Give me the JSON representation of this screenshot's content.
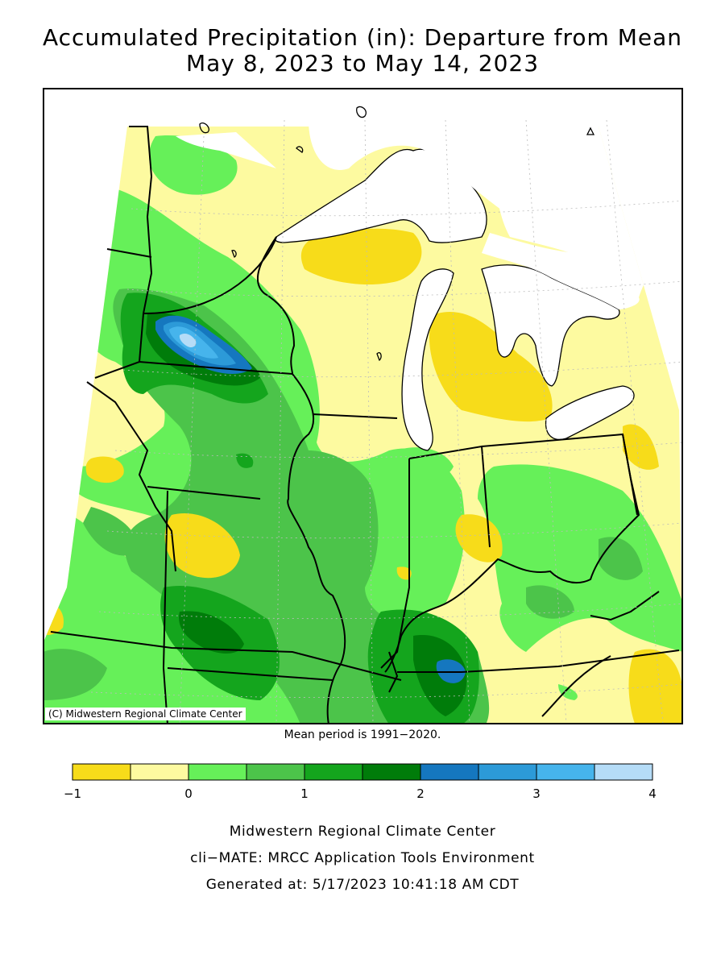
{
  "title": {
    "line1": "Accumulated Precipitation (in): Departure from Mean",
    "line2": "May 8, 2023 to May 14, 2023"
  },
  "map": {
    "credit": "(C) Midwestern Regional Climate Center",
    "mean_period_note": "Mean period is 1991−2020."
  },
  "legend": {
    "bins": [
      {
        "from": -1.0,
        "to": -0.5,
        "color": "#f7dc1a"
      },
      {
        "from": -0.5,
        "to": 0.0,
        "color": "#fdfaa0"
      },
      {
        "from": 0.0,
        "to": 0.5,
        "color": "#66f059"
      },
      {
        "from": 0.5,
        "to": 1.0,
        "color": "#4cc44a"
      },
      {
        "from": 1.0,
        "to": 1.5,
        "color": "#14a51d"
      },
      {
        "from": 1.5,
        "to": 2.0,
        "color": "#007c0a"
      },
      {
        "from": 2.0,
        "to": 2.5,
        "color": "#1577bf"
      },
      {
        "from": 2.5,
        "to": 3.0,
        "color": "#2c9ad8"
      },
      {
        "from": 3.0,
        "to": 3.5,
        "color": "#46b4ec"
      },
      {
        "from": 3.5,
        "to": 4.0,
        "color": "#b5dcf7"
      }
    ],
    "tick_labels": [
      "−1",
      "0",
      "1",
      "2",
      "3",
      "4"
    ]
  },
  "footer": {
    "line1": "Midwestern Regional Climate Center",
    "line2": "cli−MATE: MRCC Application Tools Environment",
    "line3": "Generated at: 5/17/2023 10:41:18 AM CDT"
  }
}
